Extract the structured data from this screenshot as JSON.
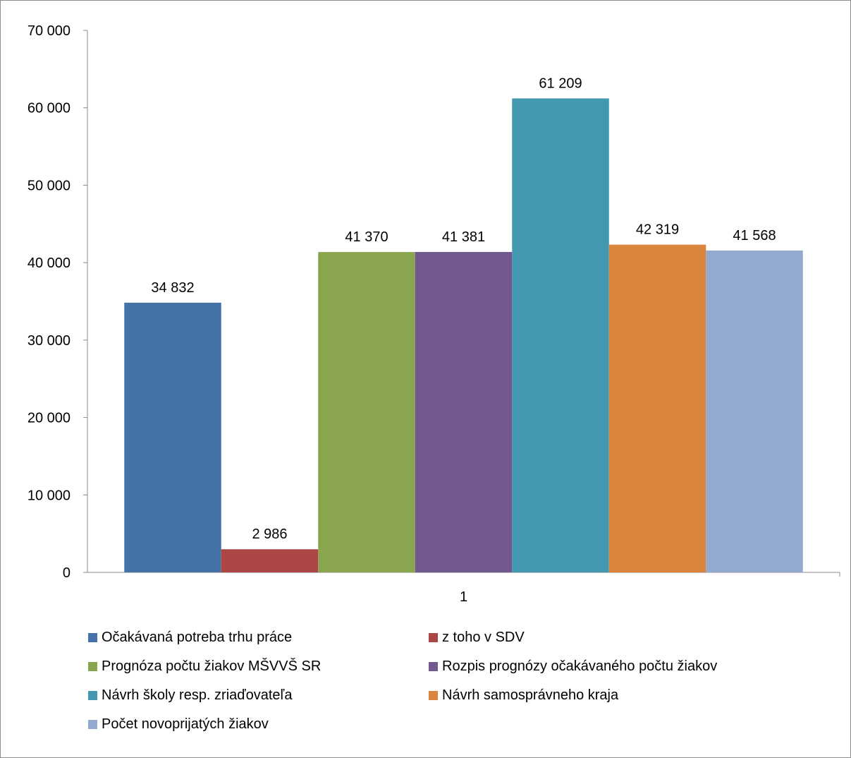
{
  "chart_data": {
    "type": "bar",
    "categories": [
      "1"
    ],
    "ylim": [
      0,
      70000
    ],
    "yticks": [
      0,
      10000,
      20000,
      30000,
      40000,
      50000,
      60000,
      70000
    ],
    "ytick_labels": [
      "0",
      "10 000",
      "20 000",
      "30 000",
      "40 000",
      "50 000",
      "60 000",
      "70 000"
    ],
    "grid": false,
    "legend_position": "bottom",
    "series": [
      {
        "name": "Očakávaná potreba trhu práce",
        "values": [
          34832
        ],
        "value_label": "34 832",
        "color": "#4573a7"
      },
      {
        "name": "z toho v SDV",
        "values": [
          2986
        ],
        "value_label": "2 986",
        "color": "#aa4643"
      },
      {
        "name": "Prognóza počtu žiakov MŠVVŠ SR",
        "values": [
          41370
        ],
        "value_label": "41 370",
        "color": "#89a54e"
      },
      {
        "name": "Rozpis prognózy očakávaného počtu žiakov",
        "values": [
          41381
        ],
        "value_label": "41 381",
        "color": "#71588f"
      },
      {
        "name": "Návrh školy resp. zriaďovateľa",
        "values": [
          61209
        ],
        "value_label": "61 209",
        "color": "#4198af"
      },
      {
        "name": "Návrh samosprávneho kraja",
        "values": [
          42319
        ],
        "value_label": "42 319",
        "color": "#db843d"
      },
      {
        "name": "Počet novoprijatých žiakov",
        "values": [
          41568
        ],
        "value_label": "41 568",
        "color": "#93a9cf"
      }
    ]
  }
}
